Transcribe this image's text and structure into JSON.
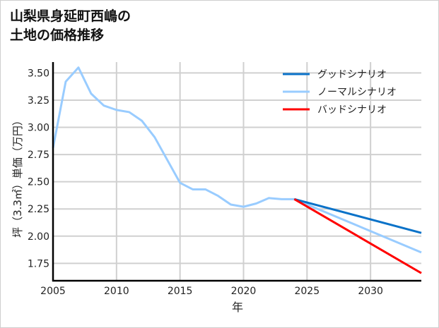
{
  "chart_data": {
    "type": "line",
    "title_lines": [
      "山梨県身延町西嶋の",
      "土地の価格推移"
    ],
    "xlabel": "年",
    "ylabel": "坪（3.3㎡）単価（万円）",
    "xlim": [
      2005,
      2034
    ],
    "ylim": [
      1.59,
      3.6
    ],
    "x_ticks": [
      2005,
      2010,
      2015,
      2020,
      2025,
      2030
    ],
    "y_ticks": [
      1.75,
      2.0,
      2.25,
      2.5,
      2.75,
      3.0,
      3.25,
      3.5
    ],
    "y_tick_labels": [
      "1.75",
      "2.00",
      "2.25",
      "2.50",
      "2.75",
      "3.00",
      "3.25",
      "3.50"
    ],
    "grid": true,
    "legend_position": "top-right",
    "series": [
      {
        "name": "グッドシナリオ",
        "color": "#0a72c8",
        "x": [
          2024,
          2034
        ],
        "y": [
          2.34,
          2.03
        ]
      },
      {
        "name": "ノーマルシナリオ",
        "color": "#99ccff",
        "x": [
          2005,
          2006,
          2007,
          2008,
          2009,
          2010,
          2011,
          2012,
          2013,
          2014,
          2015,
          2016,
          2017,
          2018,
          2019,
          2020,
          2021,
          2022,
          2023,
          2024,
          2034
        ],
        "y": [
          2.81,
          3.42,
          3.55,
          3.31,
          3.2,
          3.16,
          3.14,
          3.06,
          2.91,
          2.7,
          2.49,
          2.43,
          2.43,
          2.37,
          2.29,
          2.27,
          2.3,
          2.35,
          2.34,
          2.34,
          1.85
        ]
      },
      {
        "name": "バッドシナリオ",
        "color": "#ff0000",
        "x": [
          2024,
          2034
        ],
        "y": [
          2.34,
          1.66
        ]
      }
    ]
  }
}
